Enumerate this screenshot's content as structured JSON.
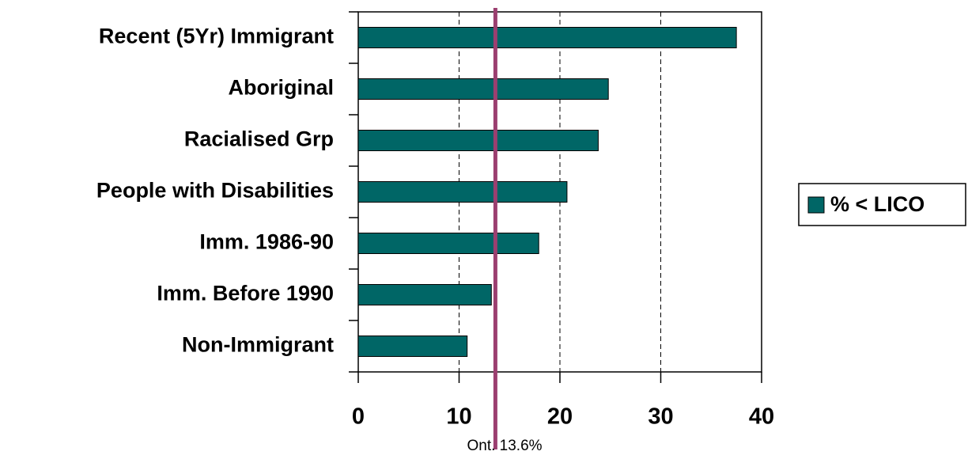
{
  "chart_data": {
    "type": "barh",
    "categories": [
      "Recent (5Yr) Immigrant",
      "Aboriginal",
      "Racialised Grp",
      "People with Disabilities",
      "Imm. 1986-90",
      "Imm. Before 1990",
      "Non-Immigrant"
    ],
    "series": [
      {
        "name": "% < LICO",
        "color": "#006666",
        "values": [
          37.5,
          24.8,
          23.8,
          20.7,
          17.9,
          13.2,
          10.8
        ]
      }
    ],
    "xlim": [
      0,
      40
    ],
    "xticks": [
      0,
      10,
      20,
      30,
      40
    ],
    "grid": true,
    "legend": "right",
    "reference_line": {
      "value": 13.6,
      "label": "Ont. 13.6%",
      "color": "#9b3f70"
    }
  }
}
